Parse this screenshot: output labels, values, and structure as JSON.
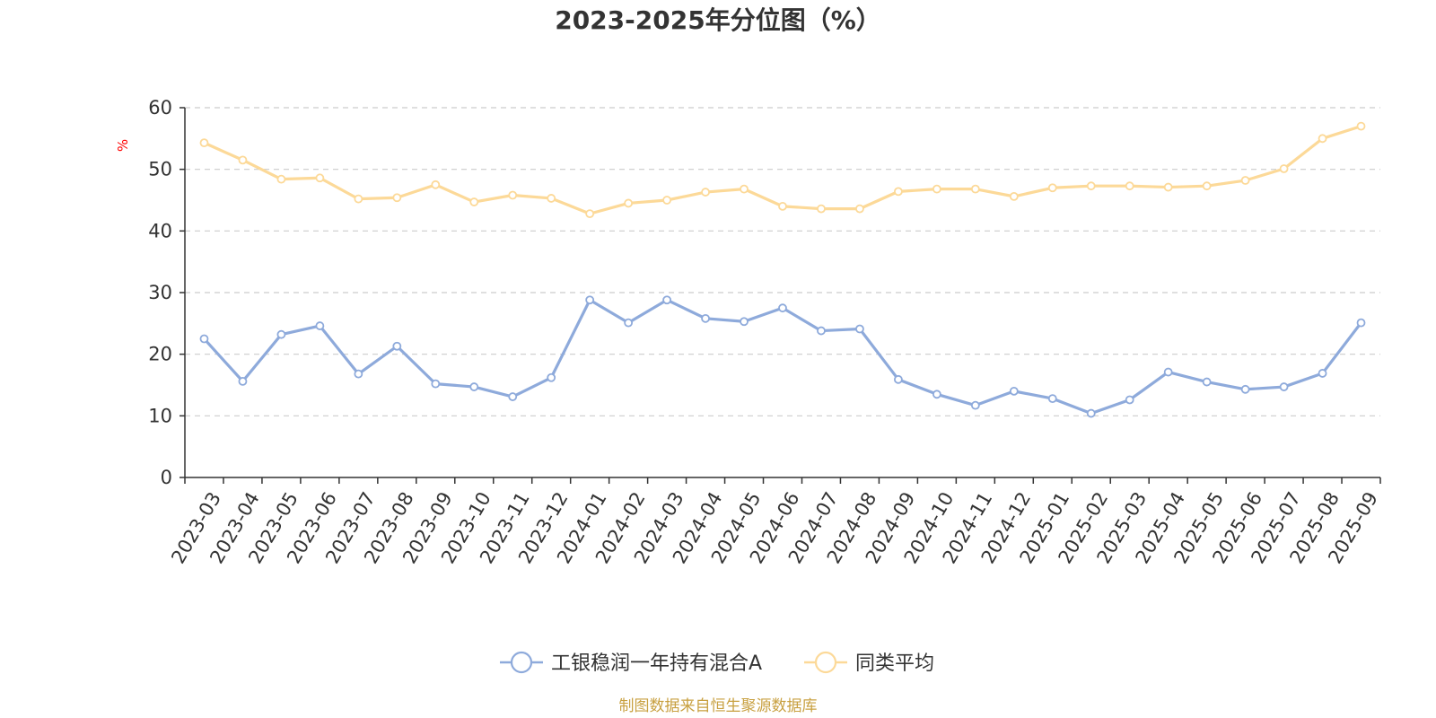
{
  "chart_data": {
    "type": "line",
    "title": "2023-2025年分位图（%）",
    "ylabel": "%",
    "xlabel": "",
    "ylim": [
      0,
      60
    ],
    "yticks": [
      0,
      10,
      20,
      30,
      40,
      50,
      60
    ],
    "grid": true,
    "legend_position": "bottom",
    "categories": [
      "2023-03",
      "2023-04",
      "2023-05",
      "2023-06",
      "2023-07",
      "2023-08",
      "2023-09",
      "2023-10",
      "2023-11",
      "2023-12",
      "2024-01",
      "2024-02",
      "2024-03",
      "2024-04",
      "2024-05",
      "2024-06",
      "2024-07",
      "2024-08",
      "2024-09",
      "2024-10",
      "2024-11",
      "2024-12",
      "2025-01",
      "2025-02",
      "2025-03",
      "2025-04",
      "2025-05",
      "2025-06",
      "2025-07",
      "2025-08",
      "2025-09"
    ],
    "series": [
      {
        "name": "工银稳润一年持有混合A",
        "color": "#8eaadb",
        "values": [
          22.5,
          15.6,
          23.2,
          24.6,
          16.8,
          21.3,
          15.2,
          14.7,
          13.1,
          16.2,
          28.8,
          25.1,
          28.8,
          25.8,
          25.3,
          27.5,
          23.8,
          24.1,
          15.9,
          13.5,
          11.7,
          14.0,
          12.8,
          10.4,
          12.6,
          17.1,
          15.5,
          14.3,
          14.7,
          16.9,
          25.1
        ]
      },
      {
        "name": "同类平均",
        "color": "#fcd998",
        "values": [
          54.3,
          51.5,
          48.4,
          48.6,
          45.2,
          45.4,
          47.5,
          44.7,
          45.8,
          45.3,
          42.8,
          44.5,
          45.0,
          46.3,
          46.8,
          44.0,
          43.6,
          43.6,
          46.4,
          46.8,
          46.8,
          45.6,
          47.0,
          47.3,
          47.3,
          47.1,
          47.3,
          48.2,
          50.1,
          55.0,
          57.0
        ]
      }
    ]
  },
  "source_note": "制图数据来自恒生聚源数据库"
}
